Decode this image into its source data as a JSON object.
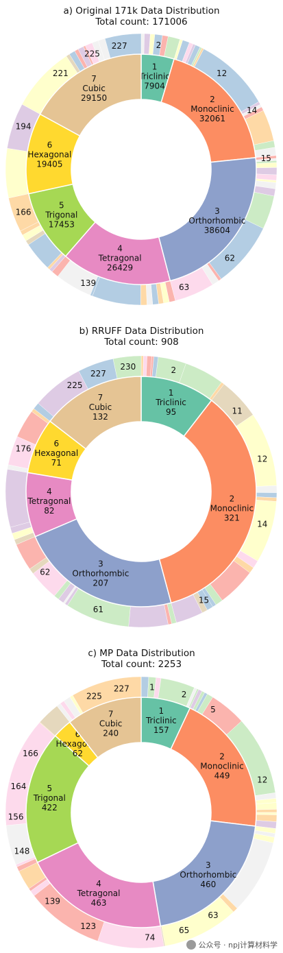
{
  "chart_data": [
    {
      "type": "pie",
      "title": "a) Original 171k Data Distribution",
      "subtitle": "Total count: 171006",
      "inner_ring": {
        "categories": [
          "1\nTriclinic",
          "2\nMonoclinic",
          "3\nOrthorhombic",
          "4\nTetragonal",
          "5\nTrigonal",
          "6\nHexagonal",
          "7\nCubic"
        ],
        "values": [
          7904,
          32061,
          38604,
          26429,
          17453,
          19405,
          29150
        ]
      },
      "outer_ring_labels": [
        {
          "text": "2",
          "angle": 8
        },
        {
          "text": "12",
          "angle": 40
        },
        {
          "text": "14",
          "angle": 62
        },
        {
          "text": "15",
          "angle": 85
        },
        {
          "text": "62",
          "angle": 135
        },
        {
          "text": "63",
          "angle": 160
        },
        {
          "text": "139",
          "angle": 205
        },
        {
          "text": "166",
          "angle": 250
        },
        {
          "text": "194",
          "angle": 290
        },
        {
          "text": "221",
          "angle": 320
        },
        {
          "text": "225",
          "angle": 337
        },
        {
          "text": "227",
          "angle": 350
        }
      ]
    },
    {
      "type": "pie",
      "title": "b) RRUFF Data Distribution",
      "subtitle": "Total count: 908",
      "inner_ring": {
        "categories": [
          "1\nTriclinic",
          "2\nMonoclinic",
          "3\nOrthorhombic",
          "4\nTetragonal",
          "6\nHexagonal",
          "7\nCubic"
        ],
        "values": [
          95,
          321,
          207,
          82,
          71,
          132
        ]
      },
      "outer_ring_labels": [
        {
          "text": "2",
          "angle": 15
        },
        {
          "text": "11",
          "angle": 50
        },
        {
          "text": "12",
          "angle": 75
        },
        {
          "text": "14",
          "angle": 105
        },
        {
          "text": "15",
          "angle": 150
        },
        {
          "text": "61",
          "angle": 200
        },
        {
          "text": "62",
          "angle": 230
        },
        {
          "text": "176",
          "angle": 290
        },
        {
          "text": "225",
          "angle": 328
        },
        {
          "text": "227",
          "angle": 340
        },
        {
          "text": "230",
          "angle": 354
        }
      ]
    },
    {
      "type": "pie",
      "title": "c) MP Data Distribution",
      "subtitle": "Total count: 2253",
      "inner_ring": {
        "categories": [
          "1\nTriclinic",
          "2\nMonoclinic",
          "3\nOrthorhombic",
          "4\nTetragonal",
          "5\nTrigonal",
          "6\nHexagonal",
          "7\nCubic"
        ],
        "values": [
          157,
          449,
          460,
          463,
          422,
          62,
          240
        ]
      },
      "outer_ring_labels": [
        {
          "text": "1",
          "angle": 5
        },
        {
          "text": "2",
          "angle": 20
        },
        {
          "text": "5",
          "angle": 35
        },
        {
          "text": "12",
          "angle": 75
        },
        {
          "text": "63",
          "angle": 145
        },
        {
          "text": "65",
          "angle": 160
        },
        {
          "text": "74",
          "angle": 176
        },
        {
          "text": "123",
          "angle": 205
        },
        {
          "text": "139",
          "angle": 225
        },
        {
          "text": "148",
          "angle": 252
        },
        {
          "text": "156",
          "angle": 268
        },
        {
          "text": "164",
          "angle": 282
        },
        {
          "text": "166",
          "angle": 298
        },
        {
          "text": "225",
          "angle": 338
        },
        {
          "text": "227",
          "angle": 351
        }
      ]
    }
  ],
  "colors": {
    "inner": {
      "Triclinic": "#66c2a5",
      "Monoclinic": "#fc8d62",
      "Orthorhombic": "#8da0cb",
      "Tetragonal": "#e78ac3",
      "Trigonal": "#a6d854",
      "Hexagonal": "#ffd92f",
      "Cubic": "#e5c494"
    },
    "outer_palette": [
      "#b3cde3",
      "#fbb4ae",
      "#ccebc5",
      "#decbe4",
      "#fed9a6",
      "#ffffcc",
      "#e5d8bd",
      "#fddaec",
      "#f2f2f2"
    ]
  },
  "watermark": {
    "text": "公众号 · npj计算材料学",
    "icon": "wechat-icon"
  }
}
